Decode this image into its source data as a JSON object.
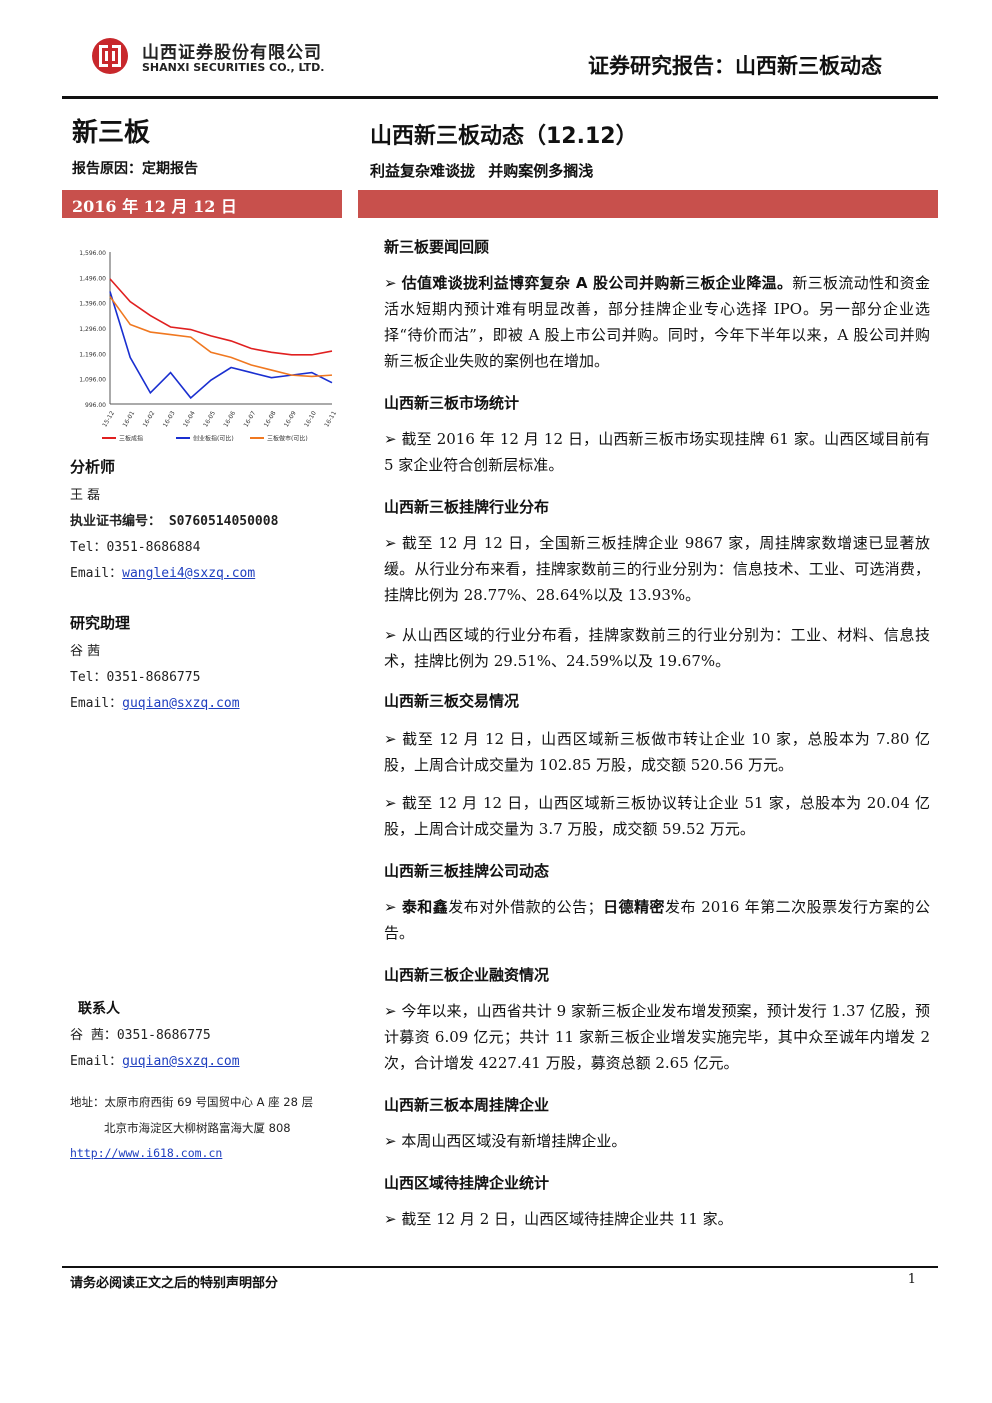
{
  "header": {
    "company_cn": "山西证券股份有限公司",
    "company_en": "SHANXI SECURITIES CO., LTD.",
    "report_type": "证券研究报告：山西新三板动态"
  },
  "left": {
    "category": "新三板",
    "reason": "报告原因：定期报告",
    "date": "2016 年 12 月 12 日"
  },
  "title": {
    "main": "山西新三板动态（12.12）",
    "subtitle": "利益复杂难谈拢  并购案例多搁浅"
  },
  "chart_data": {
    "type": "line",
    "x": [
      "15-12",
      "16-01",
      "16-02",
      "16-03",
      "16-04",
      "16-05",
      "16-06",
      "16-07",
      "16-08",
      "16-09",
      "16-10",
      "16-11"
    ],
    "x_ticks": [
      "15-12",
      "16-01",
      "16-02",
      "16-03",
      "16-04",
      "16-05",
      "16-06",
      "16-07",
      "16-08",
      "16-09",
      "16-10",
      "16-11"
    ],
    "y_ticks": [
      "1,596.00",
      "1,496.00",
      "1,396.00",
      "1,296.00",
      "1,196.00",
      "1,096.00",
      "996.00"
    ],
    "ylim": [
      996,
      1596
    ],
    "series": [
      {
        "name": "三板成指",
        "color": "#e02020",
        "values": [
          1490,
          1400,
          1345,
          1300,
          1290,
          1265,
          1245,
          1215,
          1200,
          1190,
          1190,
          1205
        ]
      },
      {
        "name": "创业板指(可比)",
        "color": "#1a2fd0",
        "values": [
          1440,
          1180,
          1040,
          1120,
          1020,
          1090,
          1140,
          1120,
          1100,
          1110,
          1120,
          1080
        ]
      },
      {
        "name": "三板做市(可比)",
        "color": "#f07820",
        "values": [
          1420,
          1310,
          1280,
          1270,
          1260,
          1200,
          1180,
          1150,
          1130,
          1110,
          1105,
          1110
        ]
      }
    ]
  },
  "analyst": {
    "heading": "分析师",
    "name": "王  磊",
    "cert_label": "执业证书编号：",
    "cert_no": "S0760514050008",
    "tel": "Tel：0351-8686884",
    "email_label": "Email：",
    "email": "wanglei4@sxzq.com"
  },
  "assistant": {
    "heading": "研究助理",
    "name": "谷  茜",
    "tel": "Tel：0351-8686775",
    "email_label": "Email：",
    "email": "guqian@sxzq.com"
  },
  "contact": {
    "heading": "联系人",
    "tel": "谷  茜：0351-8686775",
    "email_label": "Email：",
    "email": "guqian@sxzq.com",
    "address1": "地址：太原市府西街 69 号国贸中心 A 座 28 层",
    "address2": "北京市海淀区大柳树路富海大厦 808",
    "website": "http://www.i618.com.cn"
  },
  "sections": [
    {
      "head": "新三板要闻回顾"
    },
    {
      "head": "山西新三板市场统计"
    },
    {
      "head": "山西新三板挂牌行业分布"
    },
    {
      "head": "山西新三板交易情况"
    },
    {
      "head": "山西新三板挂牌公司动态"
    },
    {
      "head": "山西新三板企业融资情况"
    },
    {
      "head": "山西新三板本周挂牌企业"
    },
    {
      "head": "山西区域待挂牌企业统计"
    }
  ],
  "paragraphs": {
    "p1_bold": "估值难谈拢利益博弈复杂 A 股公司并购新三板企业降温。",
    "p1_rest": "新三板流动性和资金活水短期内预计难有明显改善，部分挂牌企业专心选择 IPO。另一部分企业选择“待价而沽”，即被 A 股上市公司并购。同时，今年下半年以来，A 股公司并购新三板企业失败的案例也在增加。",
    "p2": "截至 2016 年 12 月 12 日，山西新三板市场实现挂牌 61 家。山西区域目前有 5 家企业符合创新层标准。",
    "p3": "截至 12 月 12 日，全国新三板挂牌企业 9867 家，周挂牌家数增速已显著放缓。从行业分布来看，挂牌家数前三的行业分别为：信息技术、工业、可选消费，挂牌比例为 28.77%、28.64%以及 13.93%。",
    "p4": "从山西区域的行业分布看，挂牌家数前三的行业分别为：工业、材料、信息技术，挂牌比例为 29.51%、24.59%以及 19.67%。",
    "p5": "截至 12 月 12 日，山西区域新三板做市转让企业 10 家，总股本为 7.80 亿股，上周合计成交量为 102.85 万股，成交额 520.56 万元。",
    "p6": "截至 12 月 12 日，山西区域新三板协议转让企业 51 家，总股本为 20.04 亿股，上周合计成交量为 3.7 万股，成交额 59.52 万元。",
    "p7_b1": "泰和鑫",
    "p7_m": "发布对外借款的公告；",
    "p7_b2": "日德精密",
    "p7_rest": "发布 2016 年第二次股票发行方案的公告。",
    "p8": "今年以来，山西省共计 9 家新三板企业发布增发预案，预计发行 1.37 亿股，预计募资 6.09 亿元；共计 11 家新三板企业增发实施完毕，其中众至诚年内增发 2 次，合计增发 4227.41 万股，募资总额 2.65 亿元。",
    "p9": "本周山西区域没有新增挂牌企业。",
    "p10": "截至 12 月 2 日，山西区域待挂牌企业共 11 家。"
  },
  "bullet": "➢",
  "footer": {
    "disclaimer": "请务必阅读正文之后的特别声明部分",
    "page": "1"
  }
}
